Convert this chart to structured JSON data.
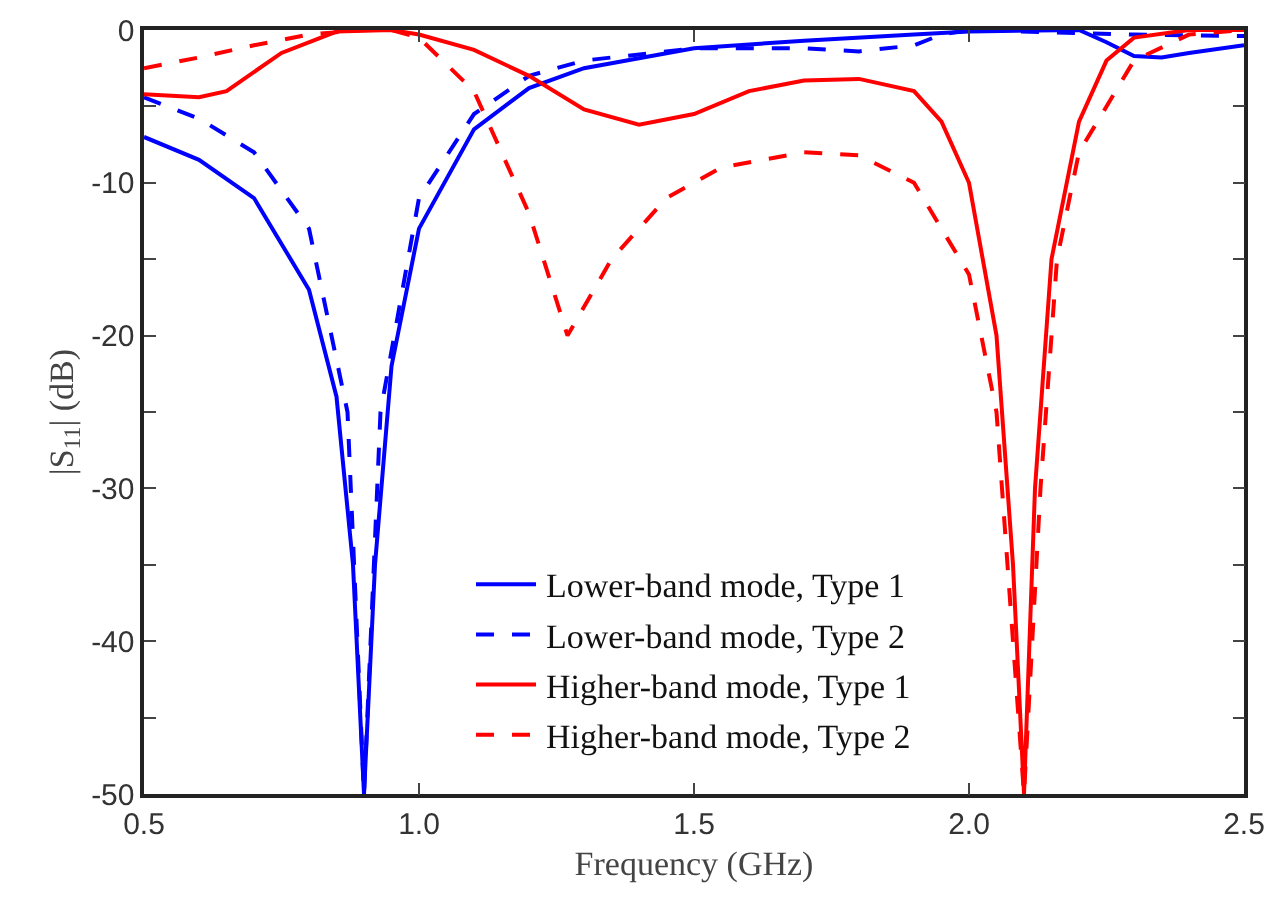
{
  "chart_data": {
    "type": "line",
    "xlabel": "Frequency (GHz)",
    "ylabel": "|S$_{11}$| (dB)",
    "xlim": [
      0.5,
      2.5
    ],
    "xticks": [
      {
        "value": 0.5,
        "label": "0.5"
      },
      {
        "value": 1,
        "label": "1.0"
      },
      {
        "value": 1.5,
        "label": "1.5"
      },
      {
        "value": 2,
        "label": "2.0"
      },
      {
        "value": 2.5,
        "label": "2.5"
      }
    ],
    "ylim": [
      -50,
      0
    ],
    "yticks": [
      -50,
      {
        "value": -45,
        "label": null
      },
      -40,
      {
        "value": -35,
        "label": null
      },
      -30,
      {
        "value": -25,
        "label": null
      },
      -20,
      {
        "value": -15,
        "label": null
      },
      -10,
      {
        "value": -5,
        "label": null
      },
      0
    ],
    "grid": false,
    "legend": "bottom",
    "marker": "none",
    "series": [
      {
        "name": "Lower-band mode, Type 1",
        "color": "#0000ff",
        "line_style": "solid",
        "x": [
          0.5,
          0.6,
          0.7,
          0.8,
          0.85,
          0.88,
          0.9,
          0.92,
          0.95,
          1.0,
          1.1,
          1.2,
          1.3,
          1.5,
          1.7,
          1.9,
          2.0,
          2.2,
          2.25,
          2.3,
          2.35,
          2.4,
          2.5
        ],
        "values": [
          -7,
          -8.5,
          -11,
          -17,
          -24,
          -35,
          -50,
          -35,
          -22,
          -13,
          -6.5,
          -3.8,
          -2.5,
          -1.2,
          -0.7,
          -0.3,
          -0.1,
          0,
          -0.8,
          -1.7,
          -1.8,
          -1.5,
          -1
        ]
      },
      {
        "name": "Lower-band mode, Type 2",
        "color": "#0000ff",
        "line_style": "dashed",
        "x": [
          0.5,
          0.6,
          0.7,
          0.8,
          0.87,
          0.9,
          0.93,
          1.0,
          1.1,
          1.2,
          1.3,
          1.5,
          1.7,
          1.8,
          1.9,
          1.95,
          2.0,
          2.3,
          2.5
        ],
        "values": [
          -4.4,
          -5.8,
          -8,
          -13,
          -25,
          -50,
          -25,
          -11,
          -5.5,
          -3,
          -2,
          -1.2,
          -1.2,
          -1.4,
          -1,
          -0.3,
          0,
          -0.3,
          -0.4
        ]
      },
      {
        "name": "Higher-band mode, Type 1",
        "color": "#ff0000",
        "line_style": "solid",
        "x": [
          0.5,
          0.6,
          0.65,
          0.75,
          0.85,
          0.95,
          1.0,
          1.1,
          1.2,
          1.3,
          1.4,
          1.5,
          1.6,
          1.7,
          1.8,
          1.9,
          1.95,
          2.0,
          2.05,
          2.08,
          2.1,
          2.12,
          2.15,
          2.2,
          2.25,
          2.3,
          2.4,
          2.5
        ],
        "values": [
          -4.2,
          -4.4,
          -4,
          -1.5,
          -0.1,
          0,
          -0.3,
          -1.3,
          -3,
          -5.2,
          -6.2,
          -5.5,
          -4,
          -3.3,
          -3.2,
          -4,
          -6,
          -10,
          -20,
          -35,
          -50,
          -30,
          -15,
          -6,
          -2,
          -0.5,
          0,
          0
        ]
      },
      {
        "name": "Higher-band mode, Type 2",
        "color": "#ff0000",
        "line_style": "dashed",
        "x": [
          0.5,
          0.6,
          0.7,
          0.8,
          0.9,
          0.95,
          1.0,
          1.1,
          1.2,
          1.27,
          1.35,
          1.45,
          1.55,
          1.7,
          1.8,
          1.9,
          2.0,
          2.05,
          2.08,
          2.1,
          2.13,
          2.16,
          2.2,
          2.3,
          2.4,
          2.5
        ],
        "values": [
          -2.5,
          -1.8,
          -1,
          -0.3,
          0,
          0,
          -0.5,
          -4,
          -12,
          -20,
          -15,
          -11,
          -9,
          -8,
          -8.2,
          -10,
          -16,
          -25,
          -40,
          -50,
          -30,
          -15,
          -8,
          -2,
          -0.3,
          0
        ]
      }
    ]
  }
}
